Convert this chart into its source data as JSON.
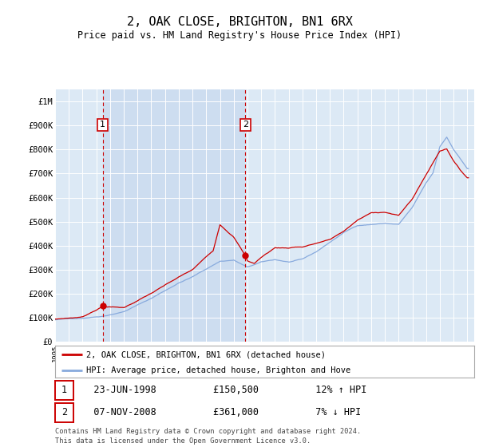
{
  "title": "2, OAK CLOSE, BRIGHTON, BN1 6RX",
  "subtitle": "Price paid vs. HM Land Registry's House Price Index (HPI)",
  "fig_bg_color": "#ffffff",
  "plot_bg_color": "#dce9f5",
  "xmin": 1995.0,
  "xmax": 2025.5,
  "ymin": 0,
  "ymax": 1050000,
  "yticks": [
    0,
    100000,
    200000,
    300000,
    400000,
    500000,
    600000,
    700000,
    800000,
    900000,
    1000000
  ],
  "ytick_labels": [
    "£0",
    "£100K",
    "£200K",
    "£300K",
    "£400K",
    "£500K",
    "£600K",
    "£700K",
    "£800K",
    "£900K",
    "£1M"
  ],
  "transactions": [
    {
      "id": 1,
      "date": "23-JUN-1998",
      "year": 1998.47,
      "price": 150500,
      "pct": "12%",
      "direction": "↑"
    },
    {
      "id": 2,
      "date": "07-NOV-2008",
      "year": 2008.85,
      "price": 361000,
      "pct": "7%",
      "direction": "↓"
    }
  ],
  "legend_line1": "2, OAK CLOSE, BRIGHTON, BN1 6RX (detached house)",
  "legend_line2": "HPI: Average price, detached house, Brighton and Hove",
  "footer": "Contains HM Land Registry data © Crown copyright and database right 2024.\nThis data is licensed under the Open Government Licence v3.0.",
  "line_red_color": "#cc0000",
  "line_blue_color": "#88aadd",
  "shade_color": "#c8d8ee"
}
